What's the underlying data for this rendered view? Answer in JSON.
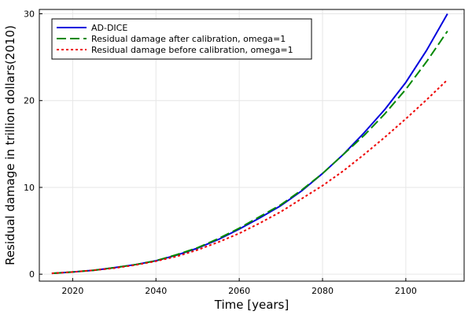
{
  "chart_data": {
    "type": "line",
    "title": "",
    "xlabel": "Time [years]",
    "ylabel": "Residual damage in trillion dollars(2010)",
    "xlim": [
      2012,
      2114
    ],
    "ylim": [
      -0.8,
      30.5
    ],
    "xticks": [
      2020,
      2040,
      2060,
      2080,
      2100
    ],
    "yticks": [
      0,
      10,
      20,
      30
    ],
    "grid": true,
    "legend_position": "top-left",
    "x": [
      2015,
      2020,
      2025,
      2030,
      2035,
      2040,
      2045,
      2050,
      2055,
      2060,
      2065,
      2070,
      2075,
      2080,
      2085,
      2090,
      2095,
      2100,
      2105,
      2110
    ],
    "series": [
      {
        "name": "AD-DICE",
        "color": "#0000dd",
        "style": "solid",
        "values": [
          0.1,
          0.25,
          0.45,
          0.75,
          1.1,
          1.55,
          2.2,
          3.0,
          4.0,
          5.2,
          6.5,
          7.9,
          9.6,
          11.6,
          13.8,
          16.3,
          19.0,
          22.1,
          25.8,
          30.0
        ]
      },
      {
        "name": "Residual damage after calibration, omega=1",
        "color": "#008800",
        "style": "dashed",
        "values": [
          0.1,
          0.25,
          0.45,
          0.75,
          1.1,
          1.55,
          2.25,
          3.05,
          4.1,
          5.3,
          6.65,
          8.0,
          9.7,
          11.6,
          13.8,
          16.0,
          18.5,
          21.3,
          24.5,
          28.0
        ]
      },
      {
        "name": "Residual damage before calibration, omega=1",
        "color": "#ee0000",
        "style": "dotted",
        "values": [
          0.1,
          0.25,
          0.45,
          0.7,
          1.05,
          1.5,
          2.05,
          2.8,
          3.7,
          4.7,
          5.9,
          7.2,
          8.7,
          10.2,
          11.9,
          13.8,
          15.8,
          17.9,
          20.1,
          22.4
        ]
      }
    ]
  }
}
